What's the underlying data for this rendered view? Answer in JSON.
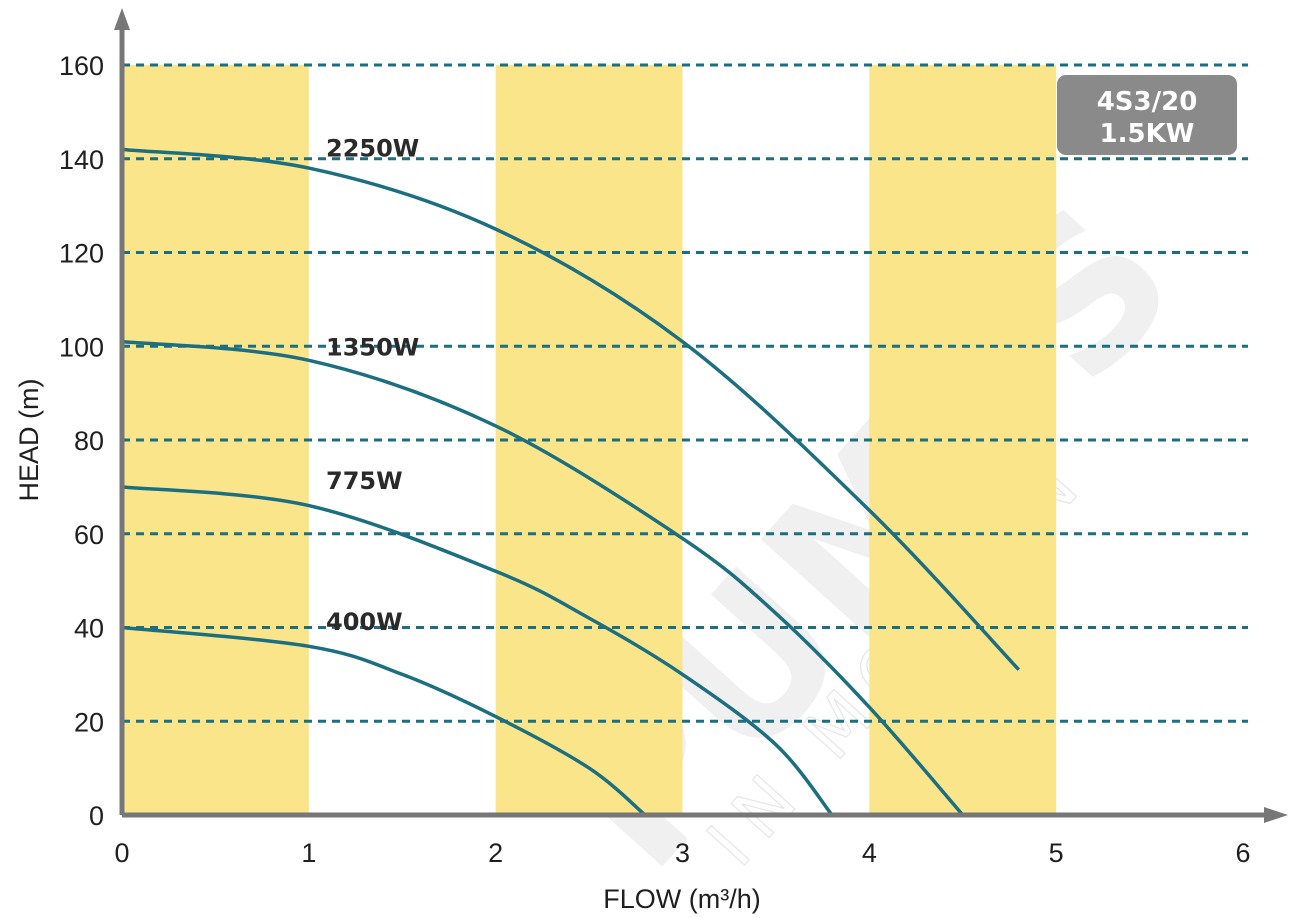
{
  "chart_data": {
    "type": "line",
    "title": "",
    "xlabel": "FLOW (m³/h)",
    "ylabel": "HEAD (m)",
    "xlim": [
      0,
      6
    ],
    "ylim": [
      0,
      160
    ],
    "x_ticks": [
      "0",
      "1",
      "2",
      "3",
      "4",
      "5",
      "6"
    ],
    "y_ticks": [
      "0",
      "20",
      "40",
      "60",
      "80",
      "100",
      "120",
      "140",
      "160"
    ],
    "grid": "horizontal dashed",
    "shaded_bands": [
      [
        0,
        1
      ],
      [
        2,
        3
      ],
      [
        4,
        5
      ]
    ],
    "series": [
      {
        "name": "2250W",
        "x": [
          0,
          1,
          2,
          3,
          4,
          4.8
        ],
        "y": [
          142,
          138,
          125,
          101,
          65,
          31
        ]
      },
      {
        "name": "1350W",
        "x": [
          0,
          1,
          2,
          3,
          3.5,
          4,
          4.5
        ],
        "y": [
          101,
          97,
          83,
          59,
          43,
          23,
          0
        ]
      },
      {
        "name": "775W",
        "x": [
          0,
          1,
          2,
          2.5,
          3,
          3.5,
          3.8
        ],
        "y": [
          70,
          66,
          52,
          42,
          30,
          15,
          0
        ]
      },
      {
        "name": "400W",
        "x": [
          0,
          1,
          1.5,
          2,
          2.5,
          2.8
        ],
        "y": [
          40,
          36,
          30,
          21,
          10,
          0
        ]
      }
    ],
    "badge": [
      "4S3/20",
      "1.5KW"
    ],
    "colors": {
      "curve": "#1b6f80",
      "band": "#fae58a",
      "grid": "#1b6f80",
      "axis": "#777777",
      "badge": "#8a8a8a"
    }
  },
  "watermark": {
    "brand": "PUMPS",
    "tagline": "IN MOTION"
  }
}
